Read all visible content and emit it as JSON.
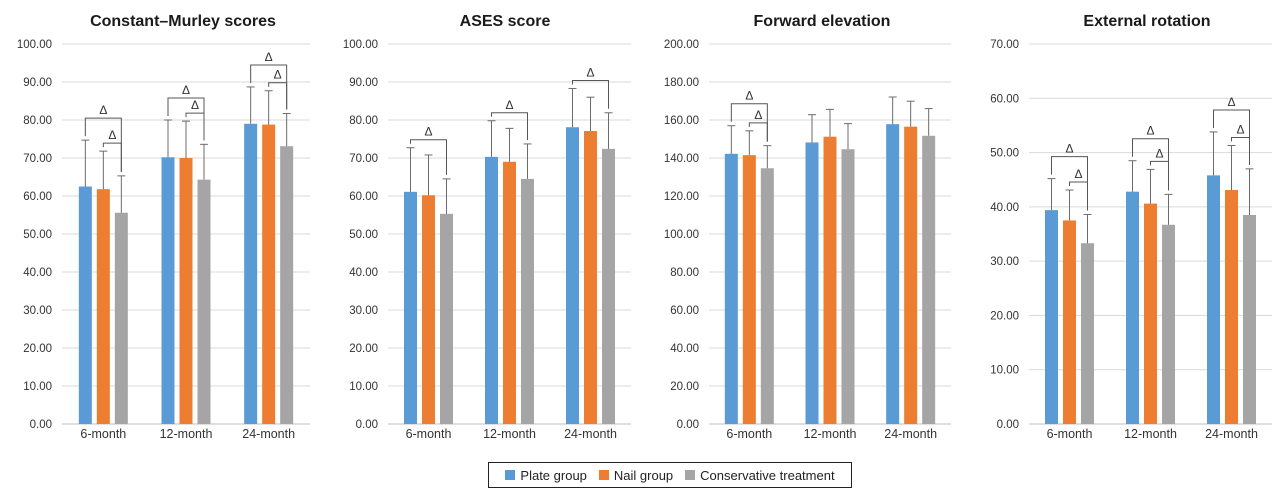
{
  "colors": {
    "plate": "#5b9bd5",
    "nail": "#ed7d31",
    "conservative": "#a5a5a5",
    "grid": "#d9d9d9",
    "errorbar": "#6b6b6b",
    "bracket": "#555555"
  },
  "legend": {
    "items": [
      {
        "label": "Plate group",
        "color": "#5b9bd5"
      },
      {
        "label": "Nail group",
        "color": "#ed7d31"
      },
      {
        "label": "Conservative treatment",
        "color": "#a5a5a5"
      }
    ],
    "placement": "bottom-center"
  },
  "chart_data": [
    {
      "type": "bar",
      "title": "Constant–Murley scores",
      "categories": [
        "6-month",
        "12-month",
        "24-month"
      ],
      "ylim": [
        0,
        100
      ],
      "yticks": [
        "0.00",
        "10.00",
        "20.00",
        "30.00",
        "40.00",
        "50.00",
        "60.00",
        "70.00",
        "80.00",
        "90.00",
        "100.00"
      ],
      "grid": true,
      "series": [
        {
          "name": "Plate group",
          "values": [
            62.5,
            70.2,
            79.0
          ],
          "errors": [
            12.2,
            9.8,
            9.7
          ]
        },
        {
          "name": "Nail group",
          "values": [
            61.8,
            70.0,
            78.8
          ],
          "errors": [
            10.0,
            9.7,
            8.9
          ]
        },
        {
          "name": "Conservative treatment",
          "values": [
            55.6,
            64.3,
            73.1
          ],
          "errors": [
            9.7,
            9.3,
            8.6
          ]
        }
      ],
      "annotations": [
        {
          "label": "Δ",
          "category": 0,
          "from": 0,
          "to": 2,
          "level": 2
        },
        {
          "label": "Δ",
          "category": 0,
          "from": 1,
          "to": 2,
          "level": 1
        },
        {
          "label": "Δ",
          "category": 1,
          "from": 0,
          "to": 2,
          "level": 2
        },
        {
          "label": "Δ",
          "category": 1,
          "from": 1,
          "to": 2,
          "level": 1
        },
        {
          "label": "Δ",
          "category": 2,
          "from": 0,
          "to": 2,
          "level": 2
        },
        {
          "label": "Δ",
          "category": 2,
          "from": 1,
          "to": 2,
          "level": 1
        }
      ]
    },
    {
      "type": "bar",
      "title": "ASES score",
      "categories": [
        "6-month",
        "12-month",
        "24-month"
      ],
      "ylim": [
        0,
        100
      ],
      "yticks": [
        "0.00",
        "10.00",
        "20.00",
        "30.00",
        "40.00",
        "50.00",
        "60.00",
        "70.00",
        "80.00",
        "90.00",
        "100.00"
      ],
      "grid": true,
      "series": [
        {
          "name": "Plate group",
          "values": [
            61.1,
            70.3,
            78.1
          ],
          "errors": [
            11.6,
            9.5,
            10.2
          ]
        },
        {
          "name": "Nail group",
          "values": [
            60.2,
            69.0,
            77.1
          ],
          "errors": [
            10.6,
            8.8,
            8.9
          ]
        },
        {
          "name": "Conservative treatment",
          "values": [
            55.3,
            64.5,
            72.4
          ],
          "errors": [
            9.2,
            9.2,
            9.5
          ]
        }
      ],
      "annotations": [
        {
          "label": "Δ",
          "category": 0,
          "from": 0,
          "to": 2,
          "level": 1
        },
        {
          "label": "Δ",
          "category": 1,
          "from": 0,
          "to": 2,
          "level": 1
        },
        {
          "label": "Δ",
          "category": 2,
          "from": 0,
          "to": 2,
          "level": 1
        }
      ]
    },
    {
      "type": "bar",
      "title": "Forward elevation",
      "categories": [
        "6-month",
        "12-month",
        "24-month"
      ],
      "ylim": [
        0,
        200
      ],
      "yticks": [
        "0.00",
        "20.00",
        "40.00",
        "60.00",
        "80.00",
        "100.00",
        "120.00",
        "140.00",
        "160.00",
        "180.00",
        "200.00"
      ],
      "grid": true,
      "series": [
        {
          "name": "Plate group",
          "values": [
            142.2,
            148.2,
            157.8
          ],
          "errors": [
            14.8,
            14.6,
            14.3
          ]
        },
        {
          "name": "Nail group",
          "values": [
            141.5,
            151.2,
            156.5
          ],
          "errors": [
            12.8,
            14.4,
            13.4
          ]
        },
        {
          "name": "Conservative treatment",
          "values": [
            134.6,
            144.6,
            151.7
          ],
          "errors": [
            11.9,
            13.5,
            14.3
          ]
        }
      ],
      "annotations": [
        {
          "label": "Δ",
          "category": 0,
          "from": 0,
          "to": 2,
          "level": 2
        },
        {
          "label": "Δ",
          "category": 0,
          "from": 1,
          "to": 2,
          "level": 1
        }
      ]
    },
    {
      "type": "bar",
      "title": "External rotation",
      "categories": [
        "6-month",
        "12-month",
        "24-month"
      ],
      "ylim": [
        0,
        70
      ],
      "yticks": [
        "0.00",
        "10.00",
        "20.00",
        "30.00",
        "40.00",
        "50.00",
        "60.00",
        "70.00"
      ],
      "grid": true,
      "series": [
        {
          "name": "Plate group",
          "values": [
            39.4,
            42.8,
            45.8
          ],
          "errors": [
            5.8,
            5.7,
            8.0
          ]
        },
        {
          "name": "Nail group",
          "values": [
            37.5,
            40.6,
            43.1
          ],
          "errors": [
            5.6,
            6.3,
            8.2
          ]
        },
        {
          "name": "Conservative treatment",
          "values": [
            33.3,
            36.7,
            38.5
          ],
          "errors": [
            5.3,
            5.6,
            8.5
          ]
        }
      ],
      "annotations": [
        {
          "label": "Δ",
          "category": 0,
          "from": 0,
          "to": 2,
          "level": 2
        },
        {
          "label": "Δ",
          "category": 0,
          "from": 1,
          "to": 2,
          "level": 1
        },
        {
          "label": "Δ",
          "category": 1,
          "from": 0,
          "to": 2,
          "level": 2
        },
        {
          "label": "Δ",
          "category": 1,
          "from": 1,
          "to": 2,
          "level": 1
        },
        {
          "label": "Δ",
          "category": 2,
          "from": 0,
          "to": 2,
          "level": 2
        },
        {
          "label": "Δ",
          "category": 2,
          "from": 1,
          "to": 2,
          "level": 1
        }
      ]
    }
  ]
}
